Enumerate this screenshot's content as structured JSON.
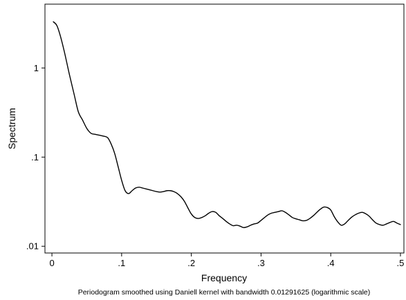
{
  "chart_data": {
    "type": "line",
    "xlabel": "Frequency",
    "ylabel": "Spectrum",
    "note": "Periodogram smoothed using Daniell kernel with bandwidth 0.01291625 (logarithmic scale)",
    "xlim": [
      -0.01,
      0.505
    ],
    "ylim": [
      0.0084,
      5.2
    ],
    "yscale": "log",
    "grid": false,
    "x_ticks": [
      {
        "value": 0,
        "label": "0"
      },
      {
        "value": 0.1,
        "label": ".1"
      },
      {
        "value": 0.2,
        "label": ".2"
      },
      {
        "value": 0.3,
        "label": ".3"
      },
      {
        "value": 0.4,
        "label": ".4"
      },
      {
        "value": 0.5,
        "label": ".5"
      }
    ],
    "y_ticks": [
      {
        "value": 0.01,
        "label": ".01"
      },
      {
        "value": 0.1,
        "label": ".1"
      },
      {
        "value": 1,
        "label": "1"
      }
    ],
    "series": [
      {
        "color": "#000000",
        "x": [
          0.002,
          0.007,
          0.012,
          0.018,
          0.025,
          0.032,
          0.038,
          0.044,
          0.05,
          0.056,
          0.062,
          0.068,
          0.074,
          0.08,
          0.085,
          0.09,
          0.095,
          0.1,
          0.105,
          0.11,
          0.115,
          0.12,
          0.125,
          0.13,
          0.135,
          0.14,
          0.145,
          0.15,
          0.155,
          0.16,
          0.165,
          0.17,
          0.175,
          0.18,
          0.185,
          0.19,
          0.195,
          0.2,
          0.205,
          0.21,
          0.215,
          0.22,
          0.225,
          0.23,
          0.235,
          0.24,
          0.245,
          0.25,
          0.255,
          0.26,
          0.265,
          0.27,
          0.275,
          0.28,
          0.285,
          0.29,
          0.295,
          0.3,
          0.305,
          0.31,
          0.315,
          0.32,
          0.325,
          0.33,
          0.335,
          0.34,
          0.345,
          0.35,
          0.355,
          0.36,
          0.365,
          0.37,
          0.375,
          0.38,
          0.385,
          0.39,
          0.395,
          0.4,
          0.405,
          0.41,
          0.415,
          0.42,
          0.425,
          0.43,
          0.435,
          0.44,
          0.445,
          0.45,
          0.455,
          0.46,
          0.465,
          0.47,
          0.475,
          0.48,
          0.485,
          0.49,
          0.495,
          0.5
        ],
        "y": [
          3.3,
          3.0,
          2.3,
          1.5,
          0.85,
          0.5,
          0.32,
          0.26,
          0.21,
          0.185,
          0.18,
          0.176,
          0.172,
          0.165,
          0.14,
          0.11,
          0.078,
          0.055,
          0.042,
          0.039,
          0.042,
          0.045,
          0.046,
          0.045,
          0.044,
          0.043,
          0.042,
          0.041,
          0.0405,
          0.041,
          0.042,
          0.042,
          0.041,
          0.039,
          0.036,
          0.032,
          0.027,
          0.023,
          0.021,
          0.0205,
          0.021,
          0.022,
          0.0235,
          0.0245,
          0.024,
          0.022,
          0.0205,
          0.019,
          0.0178,
          0.017,
          0.0172,
          0.0168,
          0.0162,
          0.0165,
          0.0172,
          0.0178,
          0.0182,
          0.0195,
          0.021,
          0.0225,
          0.0235,
          0.024,
          0.0245,
          0.025,
          0.024,
          0.0225,
          0.021,
          0.0203,
          0.0198,
          0.0193,
          0.0195,
          0.0205,
          0.022,
          0.024,
          0.026,
          0.0275,
          0.0272,
          0.0255,
          0.0215,
          0.0188,
          0.0172,
          0.0178,
          0.0195,
          0.0212,
          0.0225,
          0.0235,
          0.024,
          0.0232,
          0.0218,
          0.0198,
          0.0182,
          0.0175,
          0.0172,
          0.0178,
          0.0185,
          0.019,
          0.0182,
          0.0175
        ]
      }
    ]
  }
}
